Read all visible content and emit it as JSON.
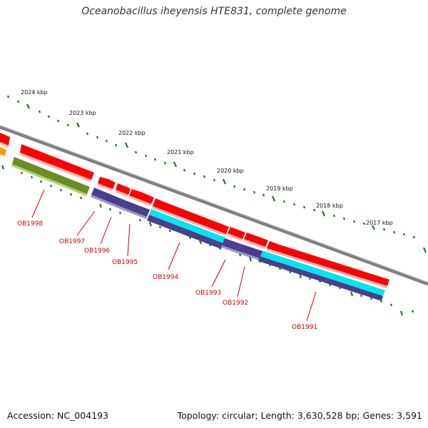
{
  "title": "Oceanobacillus iheyensis HTE831, complete genome",
  "footer": {
    "accession": "Accession: NC_004193",
    "summary": "Topology: circular; Length: 3,630,528 bp; Genes: 3,591"
  },
  "kbp_labels": [
    "2024 kbp",
    "2023 kbp",
    "2022 kbp",
    "2021 kbp",
    "2020 kbp",
    "2019 kbp",
    "2018 kbp",
    "2017 kbp"
  ],
  "gene_labels": [
    "OB1998",
    "OB1997",
    "OB1996",
    "OB1995",
    "OB1994",
    "OB1993",
    "OB1992",
    "OB1991"
  ],
  "colors": {
    "backbone": "#7f7f7f",
    "cds": "#ff0000",
    "gene_blue": "#4b3f8c",
    "cyan": "#00e5ee",
    "olive": "#6b8e23",
    "orange": "#ff9900",
    "tick_green": "#1a7a1a",
    "label_red": "#d40000"
  }
}
